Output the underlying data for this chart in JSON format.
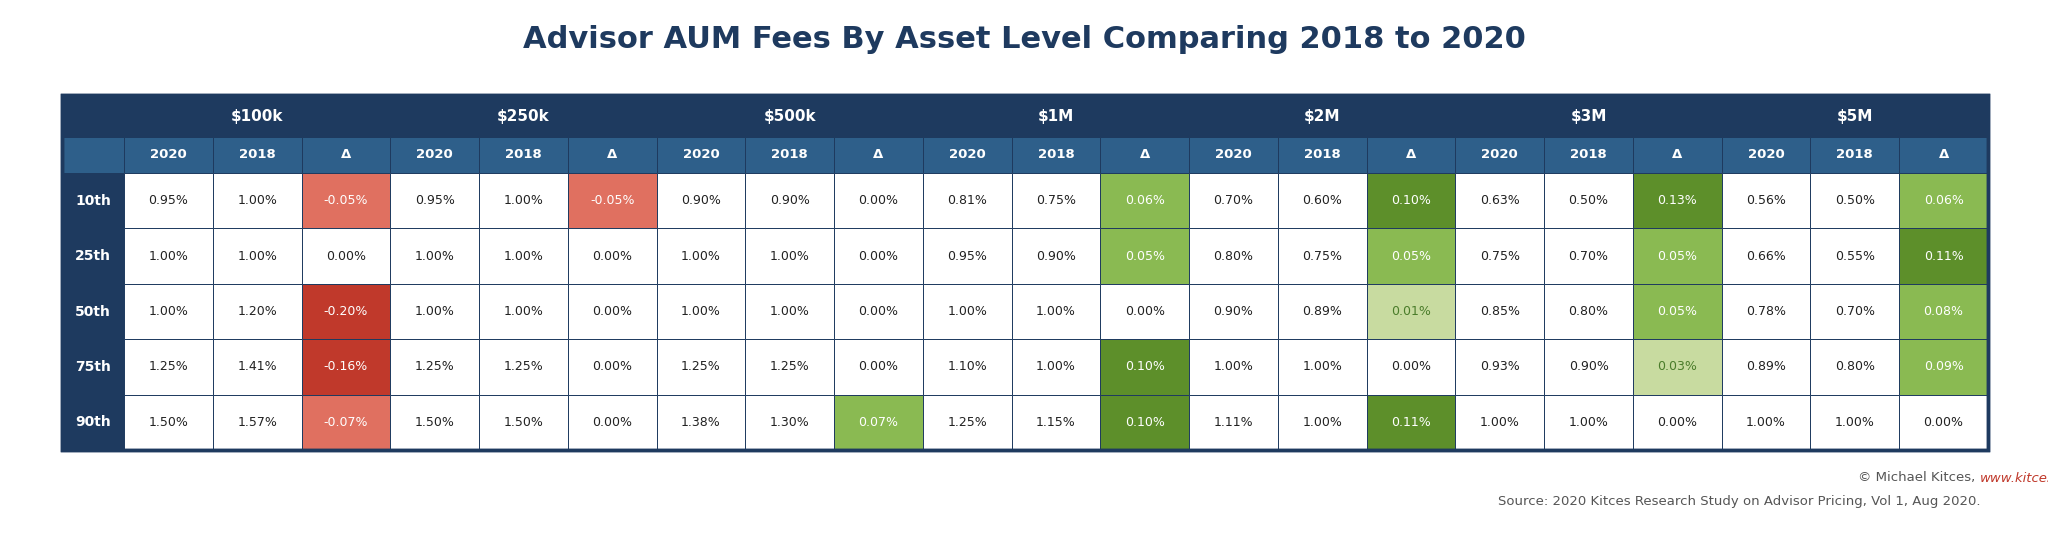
{
  "title": "Advisor AUM Fees By Asset Level Comparing 2018 to 2020",
  "asset_levels": [
    "$100k",
    "$250k",
    "$500k",
    "$1M",
    "$2M",
    "$3M",
    "$5M"
  ],
  "percentiles": [
    "10th",
    "25th",
    "50th",
    "75th",
    "90th"
  ],
  "columns": [
    "2020",
    "2018",
    "Δ"
  ],
  "data": {
    "10th": {
      "$100k": [
        "0.95%",
        "1.00%",
        "-0.05%"
      ],
      "$250k": [
        "0.95%",
        "1.00%",
        "-0.05%"
      ],
      "$500k": [
        "0.90%",
        "0.90%",
        "0.00%"
      ],
      "$1M": [
        "0.81%",
        "0.75%",
        "0.06%"
      ],
      "$2M": [
        "0.70%",
        "0.60%",
        "0.10%"
      ],
      "$3M": [
        "0.63%",
        "0.50%",
        "0.13%"
      ],
      "$5M": [
        "0.56%",
        "0.50%",
        "0.06%"
      ]
    },
    "25th": {
      "$100k": [
        "1.00%",
        "1.00%",
        "0.00%"
      ],
      "$250k": [
        "1.00%",
        "1.00%",
        "0.00%"
      ],
      "$500k": [
        "1.00%",
        "1.00%",
        "0.00%"
      ],
      "$1M": [
        "0.95%",
        "0.90%",
        "0.05%"
      ],
      "$2M": [
        "0.80%",
        "0.75%",
        "0.05%"
      ],
      "$3M": [
        "0.75%",
        "0.70%",
        "0.05%"
      ],
      "$5M": [
        "0.66%",
        "0.55%",
        "0.11%"
      ]
    },
    "50th": {
      "$100k": [
        "1.00%",
        "1.20%",
        "-0.20%"
      ],
      "$250k": [
        "1.00%",
        "1.00%",
        "0.00%"
      ],
      "$500k": [
        "1.00%",
        "1.00%",
        "0.00%"
      ],
      "$1M": [
        "1.00%",
        "1.00%",
        "0.00%"
      ],
      "$2M": [
        "0.90%",
        "0.89%",
        "0.01%"
      ],
      "$3M": [
        "0.85%",
        "0.80%",
        "0.05%"
      ],
      "$5M": [
        "0.78%",
        "0.70%",
        "0.08%"
      ]
    },
    "75th": {
      "$100k": [
        "1.25%",
        "1.41%",
        "-0.16%"
      ],
      "$250k": [
        "1.25%",
        "1.25%",
        "0.00%"
      ],
      "$500k": [
        "1.25%",
        "1.25%",
        "0.00%"
      ],
      "$1M": [
        "1.10%",
        "1.00%",
        "0.10%"
      ],
      "$2M": [
        "1.00%",
        "1.00%",
        "0.00%"
      ],
      "$3M": [
        "0.93%",
        "0.90%",
        "0.03%"
      ],
      "$5M": [
        "0.89%",
        "0.80%",
        "0.09%"
      ]
    },
    "90th": {
      "$100k": [
        "1.50%",
        "1.57%",
        "-0.07%"
      ],
      "$250k": [
        "1.50%",
        "1.50%",
        "0.00%"
      ],
      "$500k": [
        "1.38%",
        "1.30%",
        "0.07%"
      ],
      "$1M": [
        "1.25%",
        "1.15%",
        "0.10%"
      ],
      "$2M": [
        "1.11%",
        "1.00%",
        "0.11%"
      ],
      "$3M": [
        "1.00%",
        "1.00%",
        "0.00%"
      ],
      "$5M": [
        "1.00%",
        "1.00%",
        "0.00%"
      ]
    }
  },
  "header_bg_dark": "#1e3a5f",
  "header_bg_medium": "#2e5f8a",
  "header_text": "#ffffff",
  "border_color": "#1e3a5f",
  "cell_bg": "#ffffff",
  "title_color": "#1e3a5f",
  "footer_text_color": "#555555",
  "footer_link_color": "#c0392b",
  "background_color": "#ffffff",
  "neg_strong_bg": "#c0392b",
  "neg_medium_bg": "#e07060",
  "neg_light_bg": "#f5c0b8",
  "pos_light_bg": "#c8dba0",
  "pos_medium_bg": "#8aba52",
  "pos_strong_bg": "#5d8f2a",
  "neg_text": "#c0392b",
  "pos_text": "#4a7c2a",
  "white_text": "#ffffff",
  "dark_text": "#222222"
}
